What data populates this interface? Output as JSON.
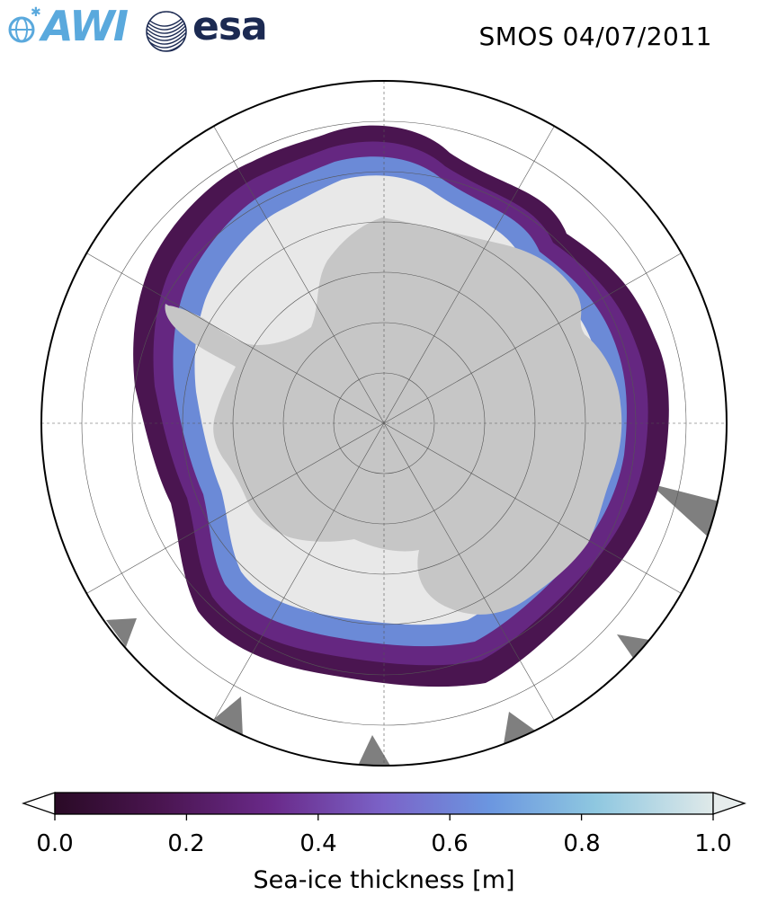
{
  "header": {
    "awi_logo_text": "AWI",
    "esa_logo_text": "esa",
    "title": "SMOS 04/07/2011"
  },
  "colors": {
    "land": "#c6c6c6",
    "ocean": "#ffffff",
    "thick_ice": "#e8e8e8",
    "missing_data": "#7f7f7f",
    "awi_blue": "#5aa9dd",
    "esa_navy": "#1c2a52"
  },
  "colorbar": {
    "label": "Sea-ice thickness [m]",
    "min": 0.0,
    "max": 1.0,
    "ticks": [
      "0.0",
      "0.2",
      "0.4",
      "0.6",
      "0.8",
      "1.0"
    ],
    "extend": "both",
    "colormap_stops": [
      "#2a0a26",
      "#4a1550",
      "#6a2a8a",
      "#7b63c8",
      "#6b96e0",
      "#8ec7e0",
      "#dfe9e9"
    ]
  },
  "map": {
    "projection": "south polar stereographic",
    "graticule": "on",
    "regions": [
      "Antarctica",
      "Southern Ocean sea ice"
    ]
  }
}
